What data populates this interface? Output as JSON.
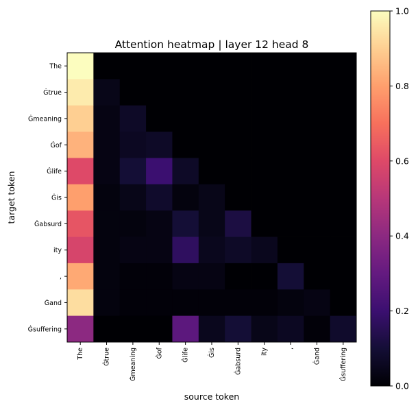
{
  "chart_data": {
    "type": "heatmap",
    "title": "Attention heatmap | layer 12 head 8",
    "xlabel": "source token",
    "ylabel": "target token",
    "x_tokens": [
      "The",
      "Ġtrue",
      "Ġmeaning",
      "Ġof",
      "Ġlife",
      "Ġis",
      "Ġabsurd",
      "ity",
      ",",
      "Ġand",
      "Ġsuffering"
    ],
    "y_tokens": [
      "The",
      "Ġtrue",
      "Ġmeaning",
      "Ġof",
      "Ġlife",
      "Ġis",
      "Ġabsurd",
      "ity",
      ",",
      "Ġand",
      "Ġsuffering"
    ],
    "colormap": "magma",
    "vmin": 0.0,
    "vmax": 1.0,
    "colorbar_ticks": [
      "0.0",
      "0.2",
      "0.4",
      "0.6",
      "0.8",
      "1.0"
    ],
    "values": [
      [
        1.0,
        0.0,
        0.0,
        0.0,
        0.0,
        0.0,
        0.0,
        0.0,
        0.0,
        0.0,
        0.0
      ],
      [
        0.96,
        0.04,
        0.0,
        0.0,
        0.0,
        0.0,
        0.0,
        0.0,
        0.0,
        0.0,
        0.0
      ],
      [
        0.9,
        0.03,
        0.07,
        0.0,
        0.0,
        0.0,
        0.0,
        0.0,
        0.0,
        0.0,
        0.0
      ],
      [
        0.84,
        0.03,
        0.06,
        0.07,
        0.0,
        0.0,
        0.0,
        0.0,
        0.0,
        0.0,
        0.0
      ],
      [
        0.6,
        0.03,
        0.1,
        0.2,
        0.07,
        0.0,
        0.0,
        0.0,
        0.0,
        0.0,
        0.0
      ],
      [
        0.8,
        0.02,
        0.04,
        0.08,
        0.02,
        0.04,
        0.0,
        0.0,
        0.0,
        0.0,
        0.0
      ],
      [
        0.63,
        0.02,
        0.02,
        0.03,
        0.1,
        0.04,
        0.12,
        0.0,
        0.0,
        0.0,
        0.0
      ],
      [
        0.58,
        0.02,
        0.03,
        0.03,
        0.17,
        0.05,
        0.07,
        0.05,
        0.0,
        0.0,
        0.0
      ],
      [
        0.82,
        0.02,
        0.01,
        0.01,
        0.03,
        0.03,
        0.0,
        0.0,
        0.1,
        0.0,
        0.0
      ],
      [
        0.93,
        0.02,
        0.01,
        0.01,
        0.01,
        0.01,
        0.01,
        0.01,
        0.02,
        0.03,
        0.0
      ],
      [
        0.4,
        0.0,
        0.0,
        0.0,
        0.28,
        0.05,
        0.1,
        0.04,
        0.06,
        0.01,
        0.08
      ]
    ]
  }
}
